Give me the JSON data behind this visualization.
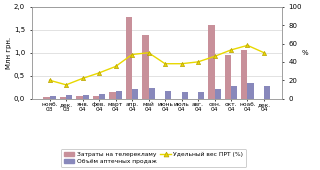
{
  "categories": [
    "нояб.03",
    "дек.03",
    "янв.04",
    "фев.04",
    "март\n04",
    "апр.04",
    "май\n04",
    "июнь\n04",
    "июль\n04",
    "авг.\n04",
    "сен.04",
    "окт.04",
    "ноаб.04",
    "дек.04"
  ],
  "tv_costs": [
    0.03,
    0.03,
    0.05,
    0.05,
    0.15,
    1.78,
    1.38,
    0.0,
    0.0,
    0.0,
    1.6,
    0.95,
    1.05,
    0.0
  ],
  "pharmacy_sales": [
    0.05,
    0.08,
    0.08,
    0.1,
    0.16,
    0.22,
    0.24,
    0.16,
    0.14,
    0.15,
    0.2,
    0.28,
    0.35,
    0.28
  ],
  "prt_weight": [
    20,
    15,
    22,
    28,
    35,
    48,
    50,
    38,
    38,
    40,
    46,
    53,
    58,
    50
  ],
  "bar_color_tv": "#c8909a",
  "bar_color_pharmacy": "#8888bb",
  "line_color": "#e8d800",
  "marker_color": "#e8d800",
  "marker_edge_color": "#b8a000",
  "ylabel_left": "Млн грн.",
  "ylabel_right": "%",
  "ylim_left": [
    0,
    2.0
  ],
  "ylim_right": [
    0,
    100
  ],
  "yticks_left": [
    0.0,
    0.5,
    1.0,
    1.5,
    2.0
  ],
  "yticks_right": [
    0,
    20,
    40,
    60,
    80,
    100
  ],
  "legend_tv": "Затраты на телерекламу",
  "legend_pharmacy": "Объём аптечных продаж",
  "legend_prt": "Удельный вес ПРТ (%)",
  "bg_color": "#ffffff",
  "bar_width": 0.38
}
